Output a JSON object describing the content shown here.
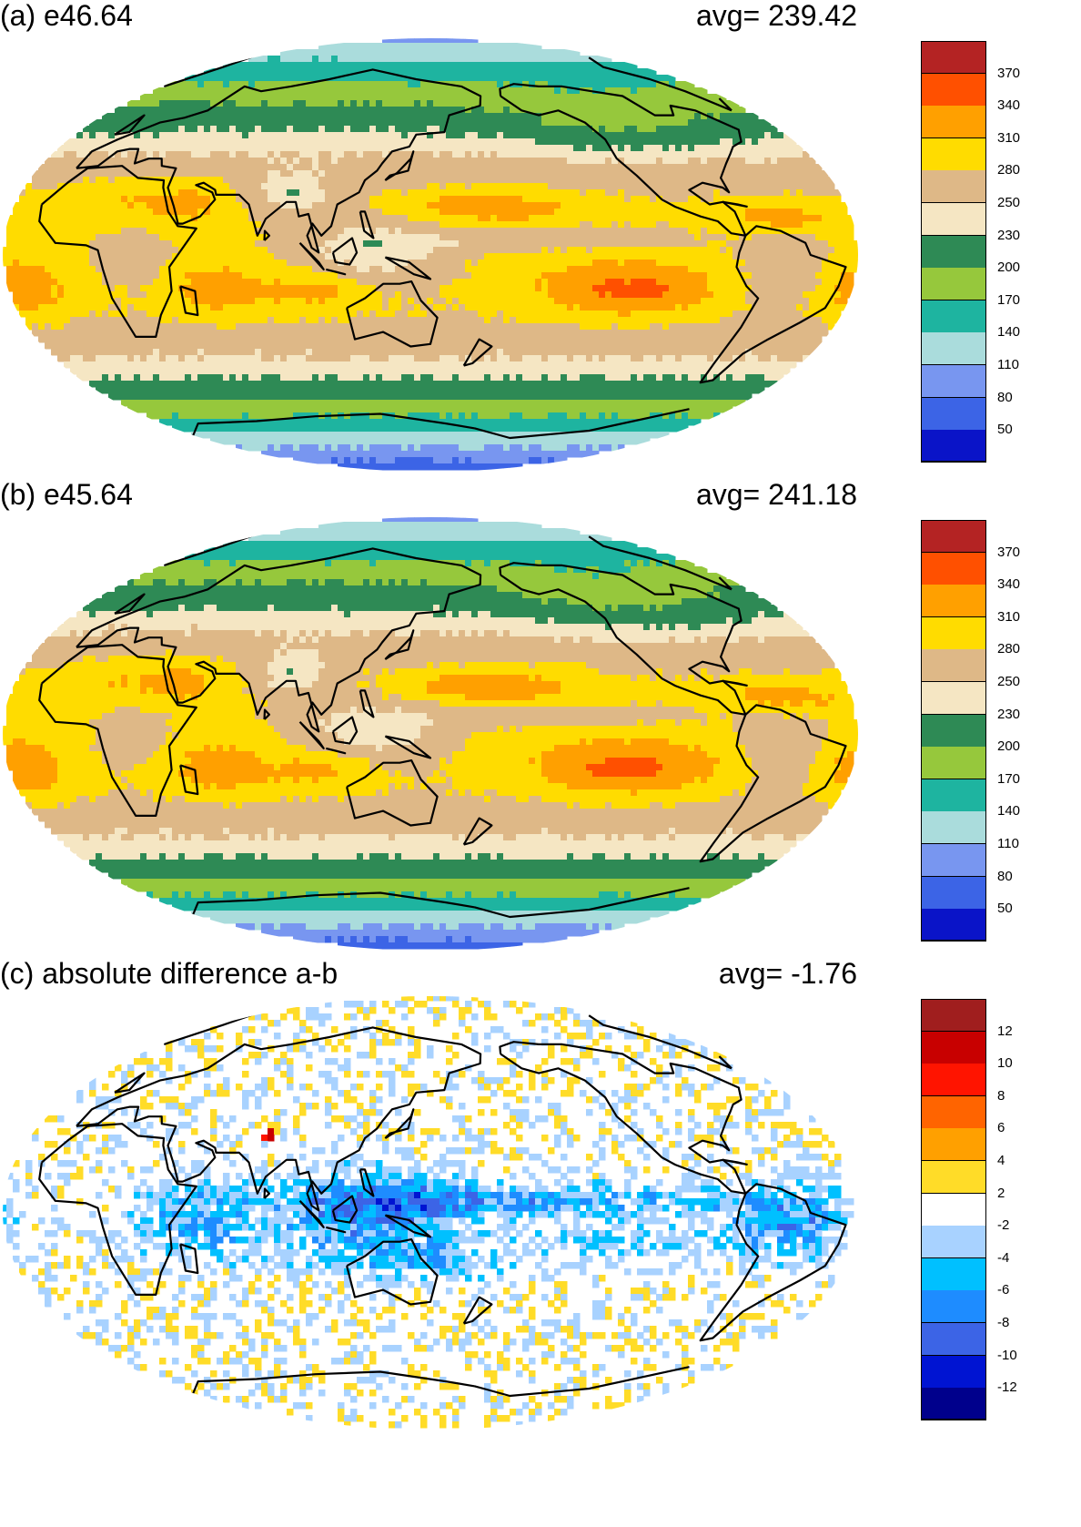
{
  "panels": [
    {
      "id": "a",
      "title": "(a) e46.64",
      "avg_label": "avg=  239.42",
      "field": "full",
      "colorbar": {
        "colors": [
          "#0a14c8",
          "#3c64e6",
          "#7896f0",
          "#aadcdc",
          "#1eb4a0",
          "#96c83c",
          "#2e8a55",
          "#f5e6c3",
          "#deb887",
          "#ffdc00",
          "#ffa000",
          "#ff5000",
          "#b42323"
        ],
        "labels": [
          "50",
          "80",
          "110",
          "140",
          "170",
          "200",
          "230",
          "250",
          "280",
          "310",
          "340",
          "370"
        ]
      }
    },
    {
      "id": "b",
      "title": "(b) e45.64",
      "avg_label": "avg=  241.18",
      "field": "full",
      "colorbar": {
        "colors": [
          "#0a14c8",
          "#3c64e6",
          "#7896f0",
          "#aadcdc",
          "#1eb4a0",
          "#96c83c",
          "#2e8a55",
          "#f5e6c3",
          "#deb887",
          "#ffdc00",
          "#ffa000",
          "#ff5000",
          "#b42323"
        ],
        "labels": [
          "50",
          "80",
          "110",
          "140",
          "170",
          "200",
          "230",
          "250",
          "280",
          "310",
          "340",
          "370"
        ]
      }
    },
    {
      "id": "c",
      "title": "(c) absolute difference a-b",
      "avg_label": "avg=   -1.76",
      "field": "diff",
      "colorbar": {
        "colors": [
          "#00008c",
          "#0014d2",
          "#3c64e6",
          "#1e8cff",
          "#00c0ff",
          "#a8d2ff",
          "#ffffff",
          "#ffdc28",
          "#ffa000",
          "#ff6400",
          "#ff1400",
          "#c80000",
          "#a01e1e"
        ],
        "labels": [
          "-12",
          "-10",
          "-8",
          "-6",
          "-4",
          "-2",
          "2",
          "4",
          "6",
          "8",
          "10",
          "12"
        ]
      }
    }
  ]
}
